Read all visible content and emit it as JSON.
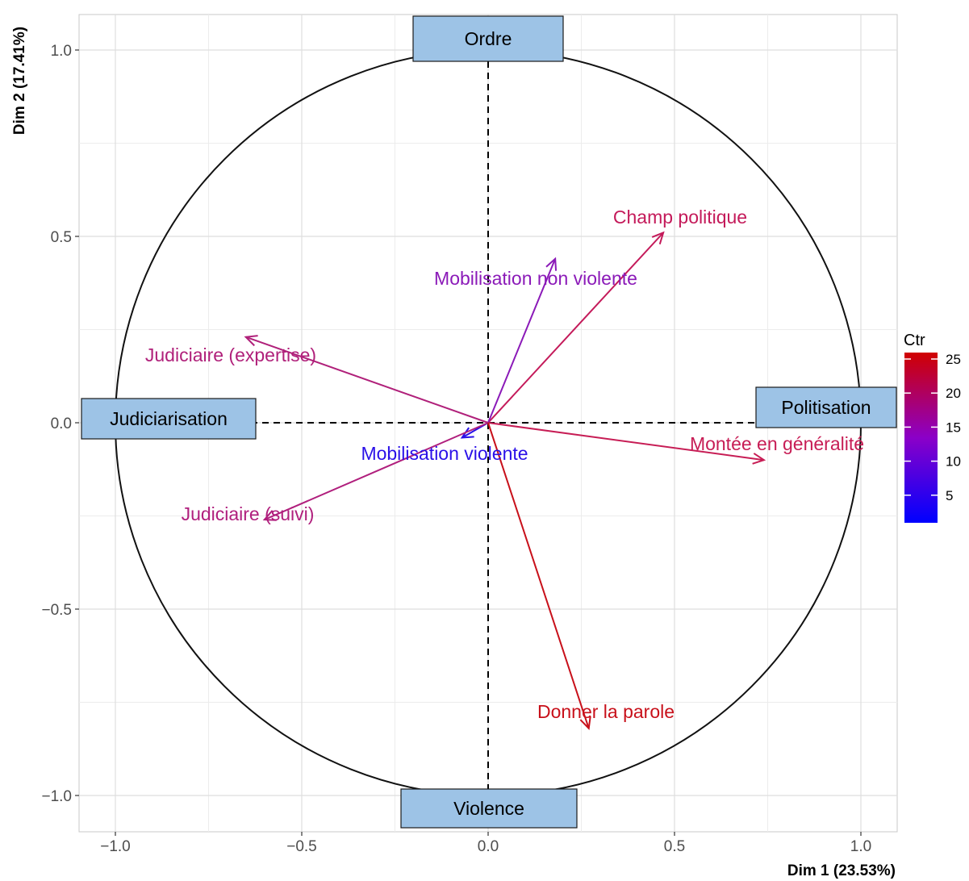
{
  "chart_data": {
    "type": "scatter",
    "subtype": "correlation-circle",
    "title": "",
    "xlabel": "Dim 1 (23.53%)",
    "ylabel": "Dim 2 (17.41%)",
    "xlim": [
      -1.1,
      1.1
    ],
    "ylim": [
      -1.1,
      1.1
    ],
    "xticks": [
      -1.0,
      -0.5,
      0.0,
      0.5,
      1.0
    ],
    "yticks": [
      -1.0,
      -0.5,
      0.0,
      0.5,
      1.0
    ],
    "xtick_labels": [
      "−1.0",
      "−0.5",
      "0.0",
      "0.5",
      "1.0"
    ],
    "ytick_labels": [
      "−1.0",
      "−0.5",
      "0.0",
      "0.5",
      "1.0"
    ],
    "grid": true,
    "circle_radius": 1.0,
    "variables": [
      {
        "name": "Champ politique",
        "x": 0.47,
        "y": 0.51,
        "ctr": 15,
        "color": "#c41a5a"
      },
      {
        "name": "Mobilisation non violente",
        "x": 0.18,
        "y": 0.44,
        "ctr": 6,
        "color": "#8b1ab8"
      },
      {
        "name": "Judiciaire (expertise)",
        "x": -0.65,
        "y": 0.23,
        "ctr": 13,
        "color": "#b0207a"
      },
      {
        "name": "Montée en généralité",
        "x": 0.74,
        "y": -0.1,
        "ctr": 16,
        "color": "#c71d55"
      },
      {
        "name": "Mobilisation violente",
        "x": -0.07,
        "y": -0.04,
        "ctr": 1,
        "color": "#2a10e8"
      },
      {
        "name": "Judiciaire (suivi)",
        "x": -0.6,
        "y": -0.26,
        "ctr": 12,
        "color": "#b01f7d"
      },
      {
        "name": "Donner la parole",
        "x": 0.27,
        "y": -0.82,
        "ctr": 25,
        "color": "#c8101a"
      }
    ],
    "legend": {
      "title": "Ctr",
      "position": "right",
      "min": 0,
      "max": 25,
      "ticks": [
        "5",
        "10",
        "15",
        "20",
        "25"
      ],
      "tick_values": [
        5,
        10,
        15,
        20,
        25
      ],
      "colors": [
        "#0000ff",
        "#8b00c8",
        "#d00000"
      ]
    },
    "annotations": [
      {
        "text": "Ordre",
        "position": "top"
      },
      {
        "text": "Judiciarisation",
        "position": "left"
      },
      {
        "text": "Politisation",
        "position": "right"
      },
      {
        "text": "Violence",
        "position": "bottom"
      }
    ],
    "annotation_fill": "#9dc3e6"
  }
}
